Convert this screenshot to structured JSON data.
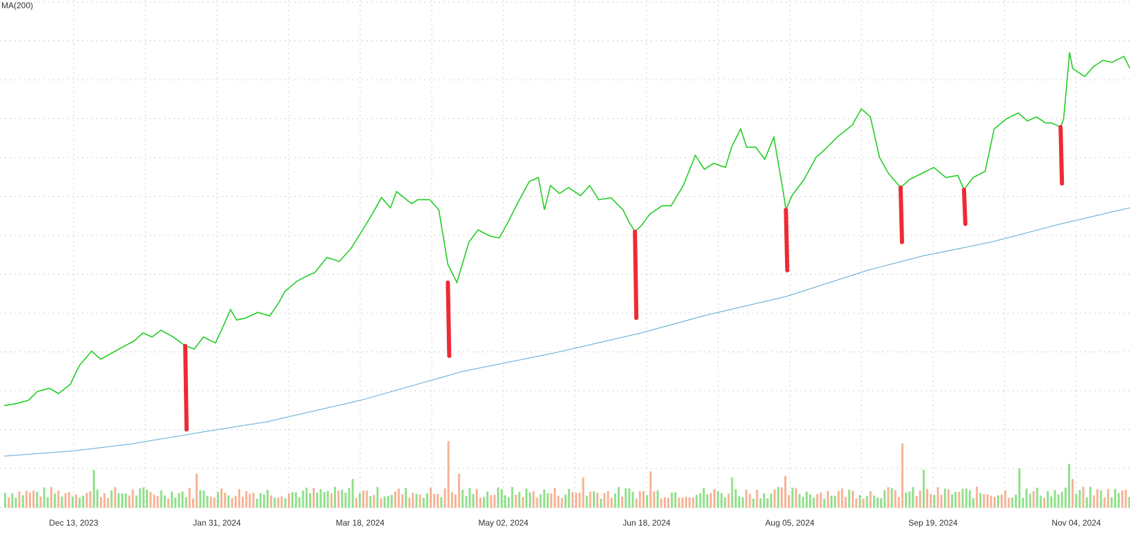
{
  "chart_data": {
    "type": "line",
    "title": "",
    "indicator_label": "MA(200)",
    "x_tick_labels": [
      "Dec 13, 2023",
      "Jan 31, 2024",
      "Mar 18, 2024",
      "May 02, 2024",
      "Jun 18, 2024",
      "Aug 05, 2024",
      "Sep 19, 2024",
      "Nov 04, 2024"
    ],
    "grid": true,
    "legend": "none",
    "colors": {
      "price": "#22cc22",
      "ma": "#5aa7d2",
      "gap_marker": "#ee2a35",
      "volume_up": "#8fe08a",
      "volume_down": "#f7b295",
      "grid": "#cccccc"
    },
    "x_range": [
      "2023-11-20",
      "2024-11-27"
    ],
    "y_range": [
      0,
      100
    ],
    "note_units": "y axis has no printed tick labels; values are on an unlabeled 0-100 relative scale",
    "series": [
      {
        "role": "price",
        "points": [
          [
            "2023-11-20",
            12.5
          ],
          [
            "2023-11-24",
            13.0
          ],
          [
            "2023-11-28",
            13.8
          ],
          [
            "2023-12-01",
            16.0
          ],
          [
            "2023-12-05",
            16.8
          ],
          [
            "2023-12-08",
            15.5
          ],
          [
            "2023-12-12",
            17.8
          ],
          [
            "2023-12-13",
            19.5
          ],
          [
            "2023-12-15",
            22.5
          ],
          [
            "2023-12-19",
            26.0
          ],
          [
            "2023-12-22",
            24.0
          ],
          [
            "2023-12-28",
            26.5
          ],
          [
            "2024-01-02",
            28.5
          ],
          [
            "2024-01-05",
            30.5
          ],
          [
            "2024-01-08",
            29.5
          ],
          [
            "2024-01-11",
            31.2
          ],
          [
            "2024-01-15",
            29.5
          ],
          [
            "2024-01-19",
            27.3
          ],
          [
            "2024-01-22",
            26.5
          ],
          [
            "2024-01-25",
            29.5
          ],
          [
            "2024-01-29",
            28.0
          ],
          [
            "2024-01-31",
            31.2
          ],
          [
            "2024-02-03",
            36.3
          ],
          [
            "2024-02-05",
            33.7
          ],
          [
            "2024-02-08",
            34.2
          ],
          [
            "2024-02-12",
            35.6
          ],
          [
            "2024-02-16",
            34.7
          ],
          [
            "2024-02-19",
            38.0
          ],
          [
            "2024-02-21",
            40.8
          ],
          [
            "2024-02-25",
            43.3
          ],
          [
            "2024-02-28",
            44.5
          ],
          [
            "2024-03-02",
            45.5
          ],
          [
            "2024-03-06",
            49.2
          ],
          [
            "2024-03-10",
            48.2
          ],
          [
            "2024-03-14",
            51.5
          ],
          [
            "2024-03-18",
            56.3
          ],
          [
            "2024-03-21",
            60.0
          ],
          [
            "2024-03-24",
            64.0
          ],
          [
            "2024-03-27",
            61.5
          ],
          [
            "2024-03-29",
            65.5
          ],
          [
            "2024-04-03",
            62.5
          ],
          [
            "2024-04-05",
            63.5
          ],
          [
            "2024-04-09",
            63.5
          ],
          [
            "2024-04-12",
            61.0
          ],
          [
            "2024-04-15",
            47.5
          ],
          [
            "2024-04-18",
            43.0
          ],
          [
            "2024-04-22",
            53.0
          ],
          [
            "2024-04-25",
            56.0
          ],
          [
            "2024-04-29",
            54.5
          ],
          [
            "2024-05-02",
            54.0
          ],
          [
            "2024-05-05",
            58.0
          ],
          [
            "2024-05-08",
            62.5
          ],
          [
            "2024-05-12",
            68.0
          ],
          [
            "2024-05-15",
            69.0
          ],
          [
            "2024-05-17",
            61.0
          ],
          [
            "2024-05-19",
            67.0
          ],
          [
            "2024-05-22",
            65.0
          ],
          [
            "2024-05-25",
            66.5
          ],
          [
            "2024-05-29",
            64.5
          ],
          [
            "2024-06-01",
            67.0
          ],
          [
            "2024-06-04",
            63.5
          ],
          [
            "2024-06-08",
            64.0
          ],
          [
            "2024-06-12",
            61.0
          ],
          [
            "2024-06-14",
            58.0
          ],
          [
            "2024-06-16",
            55.6
          ],
          [
            "2024-06-18",
            57.0
          ],
          [
            "2024-06-21",
            60.0
          ],
          [
            "2024-06-25",
            62.0
          ],
          [
            "2024-06-28",
            62.0
          ],
          [
            "2024-07-02",
            67.0
          ],
          [
            "2024-07-06",
            74.5
          ],
          [
            "2024-07-09",
            71.0
          ],
          [
            "2024-07-12",
            72.5
          ],
          [
            "2024-07-16",
            71.5
          ],
          [
            "2024-07-18",
            76.5
          ],
          [
            "2024-07-21",
            81.0
          ],
          [
            "2024-07-23",
            76.5
          ],
          [
            "2024-07-26",
            76.5
          ],
          [
            "2024-07-29",
            73.5
          ],
          [
            "2024-08-01",
            79.0
          ],
          [
            "2024-08-04",
            66.0
          ],
          [
            "2024-08-05",
            61.0
          ],
          [
            "2024-08-07",
            64.5
          ],
          [
            "2024-08-11",
            68.5
          ],
          [
            "2024-08-15",
            74.0
          ],
          [
            "2024-08-18",
            76.0
          ],
          [
            "2024-08-22",
            79.0
          ],
          [
            "2024-08-27",
            82.0
          ],
          [
            "2024-08-30",
            86.0
          ],
          [
            "2024-09-02",
            84.0
          ],
          [
            "2024-09-05",
            74.0
          ],
          [
            "2024-09-08",
            70.0
          ],
          [
            "2024-09-12",
            66.5
          ],
          [
            "2024-09-15",
            68.5
          ],
          [
            "2024-09-19",
            70.0
          ],
          [
            "2024-09-23",
            71.5
          ],
          [
            "2024-09-27",
            69.0
          ],
          [
            "2024-10-01",
            69.5
          ],
          [
            "2024-10-03",
            66.0
          ],
          [
            "2024-10-06",
            69.0
          ],
          [
            "2024-10-10",
            70.5
          ],
          [
            "2024-10-13",
            81.0
          ],
          [
            "2024-10-17",
            83.5
          ],
          [
            "2024-10-21",
            85.0
          ],
          [
            "2024-10-24",
            83.0
          ],
          [
            "2024-10-27",
            84.0
          ],
          [
            "2024-10-30",
            82.5
          ],
          [
            "2024-11-01",
            82.5
          ],
          [
            "2024-11-04",
            81.5
          ],
          [
            "2024-11-05",
            83.5
          ],
          [
            "2024-11-07",
            100.0
          ],
          [
            "2024-11-08",
            96.0
          ],
          [
            "2024-11-12",
            94.0
          ],
          [
            "2024-11-15",
            96.5
          ],
          [
            "2024-11-18",
            98.0
          ],
          [
            "2024-11-21",
            97.5
          ],
          [
            "2024-11-25",
            99.0
          ],
          [
            "2024-11-27",
            96.0
          ]
        ]
      },
      {
        "role": "ma",
        "label": "MA(200)",
        "points": [
          [
            "2023-11-20",
            0.0
          ],
          [
            "2023-12-13",
            1.3
          ],
          [
            "2024-01-01",
            3.0
          ],
          [
            "2024-01-25",
            6.0
          ],
          [
            "2024-02-15",
            8.5
          ],
          [
            "2024-03-18",
            14.0
          ],
          [
            "2024-04-20",
            21.0
          ],
          [
            "2024-05-20",
            25.5
          ],
          [
            "2024-06-18",
            30.5
          ],
          [
            "2024-07-10",
            35.0
          ],
          [
            "2024-08-05",
            39.5
          ],
          [
            "2024-09-01",
            46.0
          ],
          [
            "2024-09-19",
            49.5
          ],
          [
            "2024-10-12",
            53.0
          ],
          [
            "2024-11-04",
            57.5
          ],
          [
            "2024-11-27",
            61.5
          ]
        ]
      }
    ],
    "gap_markers": [
      {
        "date": "2024-01-19",
        "top": 27.3,
        "bottom": 6.6
      },
      {
        "date": "2024-04-15",
        "top": 43.0,
        "bottom": 24.8
      },
      {
        "date": "2024-06-16",
        "top": 55.6,
        "bottom": 34.2
      },
      {
        "date": "2024-08-05",
        "top": 61.0,
        "bottom": 46.0
      },
      {
        "date": "2024-09-12",
        "top": 66.5,
        "bottom": 53.0
      },
      {
        "date": "2024-10-03",
        "top": 66.0,
        "bottom": 57.5
      },
      {
        "date": "2024-11-04",
        "top": 81.5,
        "bottom": 67.5
      }
    ],
    "volume": {
      "y_range": [
        0,
        100
      ],
      "spikes": [
        {
          "date": "2023-12-19",
          "value": 50,
          "dir": "up"
        },
        {
          "date": "2024-01-22",
          "value": 45,
          "dir": "down"
        },
        {
          "date": "2024-03-14",
          "value": 38,
          "dir": "up"
        },
        {
          "date": "2024-04-15",
          "value": 88,
          "dir": "down"
        },
        {
          "date": "2024-04-18",
          "value": 45,
          "dir": "down"
        },
        {
          "date": "2024-05-29",
          "value": 40,
          "dir": "down"
        },
        {
          "date": "2024-06-21",
          "value": 48,
          "dir": "down"
        },
        {
          "date": "2024-07-18",
          "value": 40,
          "dir": "up"
        },
        {
          "date": "2024-08-05",
          "value": 42,
          "dir": "down"
        },
        {
          "date": "2024-09-12",
          "value": 85,
          "dir": "down"
        },
        {
          "date": "2024-09-19",
          "value": 50,
          "dir": "up"
        },
        {
          "date": "2024-10-21",
          "value": 52,
          "dir": "up"
        },
        {
          "date": "2024-11-07",
          "value": 58,
          "dir": "up"
        },
        {
          "date": "2024-11-08",
          "value": 38,
          "dir": "down"
        }
      ]
    }
  }
}
